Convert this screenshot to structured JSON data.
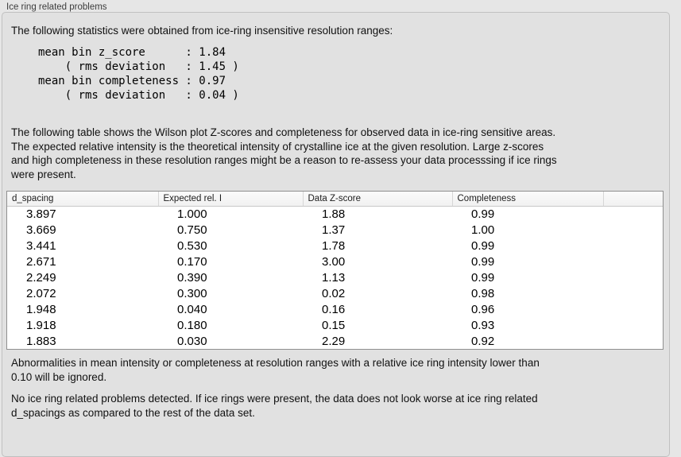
{
  "panel": {
    "title": "Ice ring related problems"
  },
  "intro": {
    "text": "The following statistics were obtained from ice-ring insensitive resolution ranges:",
    "stats_block": "mean bin z_score      : 1.84\n    ( rms deviation   : 1.45 )\nmean bin completeness : 0.97\n    ( rms deviation   : 0.04 )"
  },
  "description": {
    "text": "The following table shows the Wilson plot Z-scores and completeness for observed data in ice-ring sensitive areas.\nThe expected relative intensity is the theoretical intensity of crystalline ice at the given resolution. Large z-scores\nand high completeness in these resolution ranges might be a reason to re-assess your data processsing if ice rings\nwere present."
  },
  "table": {
    "columns": [
      "d_spacing",
      "Expected rel. I",
      "Data Z-score",
      "Completeness"
    ],
    "rows": [
      [
        "3.897",
        "1.000",
        "1.88",
        "0.99"
      ],
      [
        "3.669",
        "0.750",
        "1.37",
        "1.00"
      ],
      [
        "3.441",
        "0.530",
        "1.78",
        "0.99"
      ],
      [
        "2.671",
        "0.170",
        "3.00",
        "0.99"
      ],
      [
        "2.249",
        "0.390",
        "1.13",
        "0.99"
      ],
      [
        "2.072",
        "0.300",
        "0.02",
        "0.98"
      ],
      [
        "1.948",
        "0.040",
        "0.16",
        "0.96"
      ],
      [
        "1.918",
        "0.180",
        "0.15",
        "0.93"
      ],
      [
        "1.883",
        "0.030",
        "2.29",
        "0.92"
      ]
    ]
  },
  "notes": {
    "ignore_note": "Abnormalities in mean intensity or completeness at resolution ranges with a relative ice ring intensity lower than\n0.10 will be ignored.",
    "conclusion": "No ice ring related problems detected. If ice rings were present, the data does not look worse at ice ring related\nd_spacings as compared to the rest of the data set."
  },
  "colors": {
    "window_background": "#e6e6e6",
    "groupbox_background": "#e1e1e1",
    "groupbox_border": "#c0c0c0",
    "table_border": "#8f8f8f",
    "table_header_background": "#f5f5f5",
    "table_body_background": "#ffffff",
    "text": "#111111"
  }
}
